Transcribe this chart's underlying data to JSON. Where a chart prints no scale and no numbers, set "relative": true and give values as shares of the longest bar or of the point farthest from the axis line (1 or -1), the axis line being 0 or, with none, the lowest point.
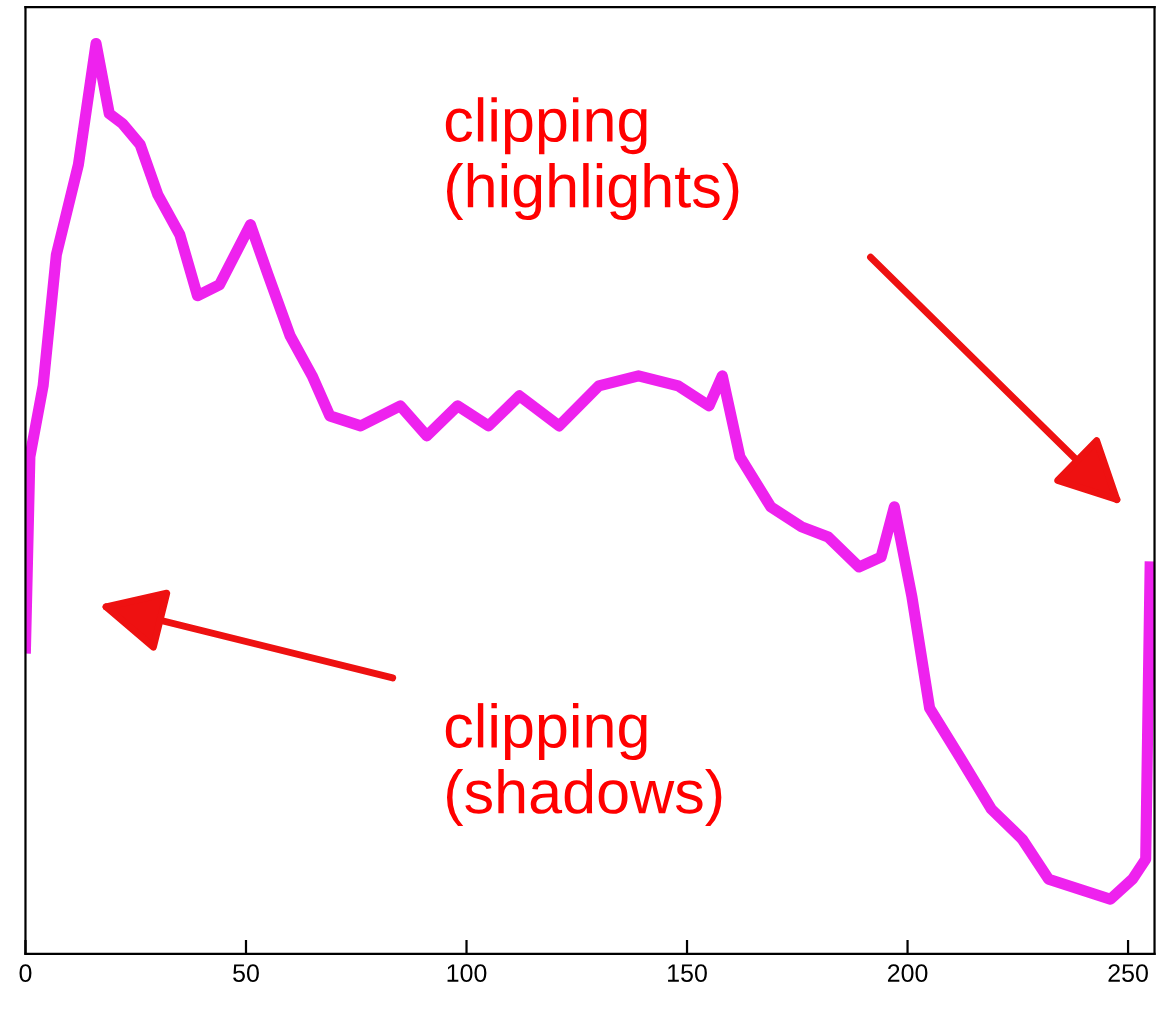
{
  "chart_data": {
    "type": "line",
    "relative": true,
    "tick_labels": "x",
    "grid": false,
    "legend": false,
    "x": [
      0,
      1,
      4,
      7,
      12,
      16,
      19,
      22,
      26,
      30,
      35,
      39,
      44,
      51,
      55,
      60,
      65,
      69,
      76,
      85,
      91,
      98,
      105,
      112,
      121,
      130,
      139,
      148,
      155,
      158,
      162,
      169,
      176,
      182,
      189,
      194,
      197,
      201,
      205,
      212,
      219,
      226,
      232,
      239,
      246,
      251,
      254,
      255
    ],
    "series": [
      {
        "color": "#ee22ee",
        "values": [
          0.336,
          0.546,
          0.624,
          0.768,
          0.867,
          1,
          0.923,
          0.912,
          0.889,
          0.834,
          0.79,
          0.723,
          0.735,
          0.801,
          0.746,
          0.679,
          0.635,
          0.591,
          0.58,
          0.602,
          0.569,
          0.602,
          0.58,
          0.613,
          0.58,
          0.624,
          0.635,
          0.624,
          0.602,
          0.635,
          0.546,
          0.491,
          0.469,
          0.458,
          0.425,
          0.436,
          0.491,
          0.392,
          0.27,
          0.215,
          0.159,
          0.126,
          0.082,
          0.071,
          0.06,
          0.082,
          0.104,
          0.425
        ]
      }
    ],
    "xlim": [
      0,
      256
    ],
    "xticks": [
      0,
      50,
      100,
      150,
      200,
      250
    ],
    "annotations": [
      "clipping\n(highlights)",
      "clipping\n(shadows)"
    ]
  }
}
